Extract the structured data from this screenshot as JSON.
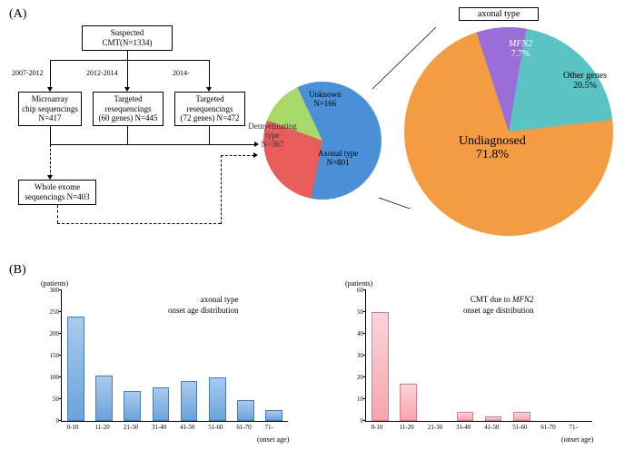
{
  "panelA": {
    "label": "(A)"
  },
  "panelB": {
    "label": "(B)"
  },
  "flowchart": {
    "top": {
      "line1": "Suspected",
      "line2": "CMT(N=1334)"
    },
    "periods": {
      "p1": "2007-2012",
      "p2": "2012-2014",
      "p3": "2014-"
    },
    "box1": {
      "line1": "Microarray",
      "line2": "chip sequencings",
      "line3": "N=417"
    },
    "box2": {
      "line1": "Targeted",
      "line2": "resequencings",
      "line3": "(60 genes) N=445"
    },
    "box3": {
      "line1": "Targeted",
      "line2": "resequencings",
      "line3": "(72 genes) N=472"
    },
    "box4": {
      "line1": "Whole exome",
      "line2": "sequencings N=403"
    }
  },
  "pie1": {
    "title": "",
    "slices": {
      "unknown": {
        "label": "Unknown",
        "value": "N=166",
        "color": "#a8d968"
      },
      "demyelinating": {
        "label": "Demyelinating",
        "sub": "type",
        "value": "N=367",
        "color": "#e85c5c"
      },
      "axonal": {
        "label": "Axonal type",
        "value": "N=801",
        "color": "#4a90d9"
      }
    }
  },
  "pie2": {
    "title": "axonal type",
    "slices": {
      "undiagnosed": {
        "label": "Undiagnosed",
        "value": "71.8%",
        "color": "#f39c42"
      },
      "mfn2": {
        "label": "MFN2",
        "value": "7.7%",
        "color": "#9b6dd7",
        "italic": true
      },
      "other": {
        "label": "Other genes",
        "value": "20.5%",
        "color": "#5ac4c4"
      }
    }
  },
  "chartA": {
    "ylabel": "(patients)",
    "xlabel": "(onset age)",
    "title1": "axonal type",
    "title2": "onset age distribution",
    "ymax": 300,
    "ystep": 50,
    "categories": [
      "0-10",
      "11-20",
      "21-30",
      "31-40",
      "41-50",
      "51-60",
      "61-70",
      "71-"
    ],
    "values": [
      240,
      104,
      68,
      78,
      92,
      100,
      48,
      25
    ]
  },
  "chartB": {
    "ylabel": "(patients)",
    "xlabel": "(onset age)",
    "title1": "CMT due to ",
    "title1_italic": "MFN2",
    "title2": "onset age distribution",
    "ymax": 60,
    "ystep": 10,
    "categories": [
      "0-10",
      "11-20",
      "21-30",
      "31-40",
      "41-50",
      "51-60",
      "61-70",
      "71-"
    ],
    "values": [
      50,
      17,
      0,
      4,
      2,
      4,
      0,
      0
    ]
  }
}
